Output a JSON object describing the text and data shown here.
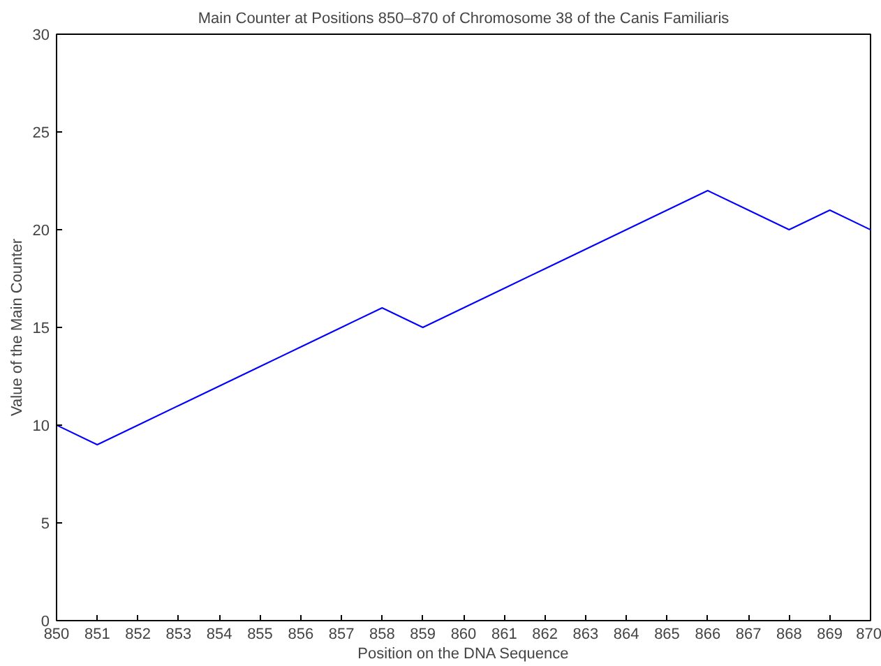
{
  "chart_data": {
    "type": "line",
    "title": "Main Counter at Positions 850–870 of Chromosome 38 of the Canis Familiaris",
    "xlabel": "Position on the DNA Sequence",
    "ylabel": "Value of the Main Counter",
    "x": [
      850,
      851,
      852,
      853,
      854,
      855,
      856,
      857,
      858,
      859,
      860,
      861,
      862,
      863,
      864,
      865,
      866,
      867,
      868,
      869,
      870
    ],
    "series": [
      {
        "color": "#0000ff",
        "values": [
          10,
          9,
          10,
          11,
          12,
          13,
          14,
          15,
          16,
          15,
          16,
          17,
          18,
          19,
          20,
          21,
          22,
          21,
          20,
          21,
          20
        ]
      }
    ],
    "xlim": [
      850,
      870
    ],
    "ylim": [
      0,
      30
    ],
    "xticks": [
      850,
      851,
      852,
      853,
      854,
      855,
      856,
      857,
      858,
      859,
      860,
      861,
      862,
      863,
      864,
      865,
      866,
      867,
      868,
      869,
      870
    ],
    "yticks": [
      0,
      5,
      10,
      15,
      20,
      25,
      30
    ],
    "grid": false,
    "marker": "none",
    "line_style": "solid"
  }
}
